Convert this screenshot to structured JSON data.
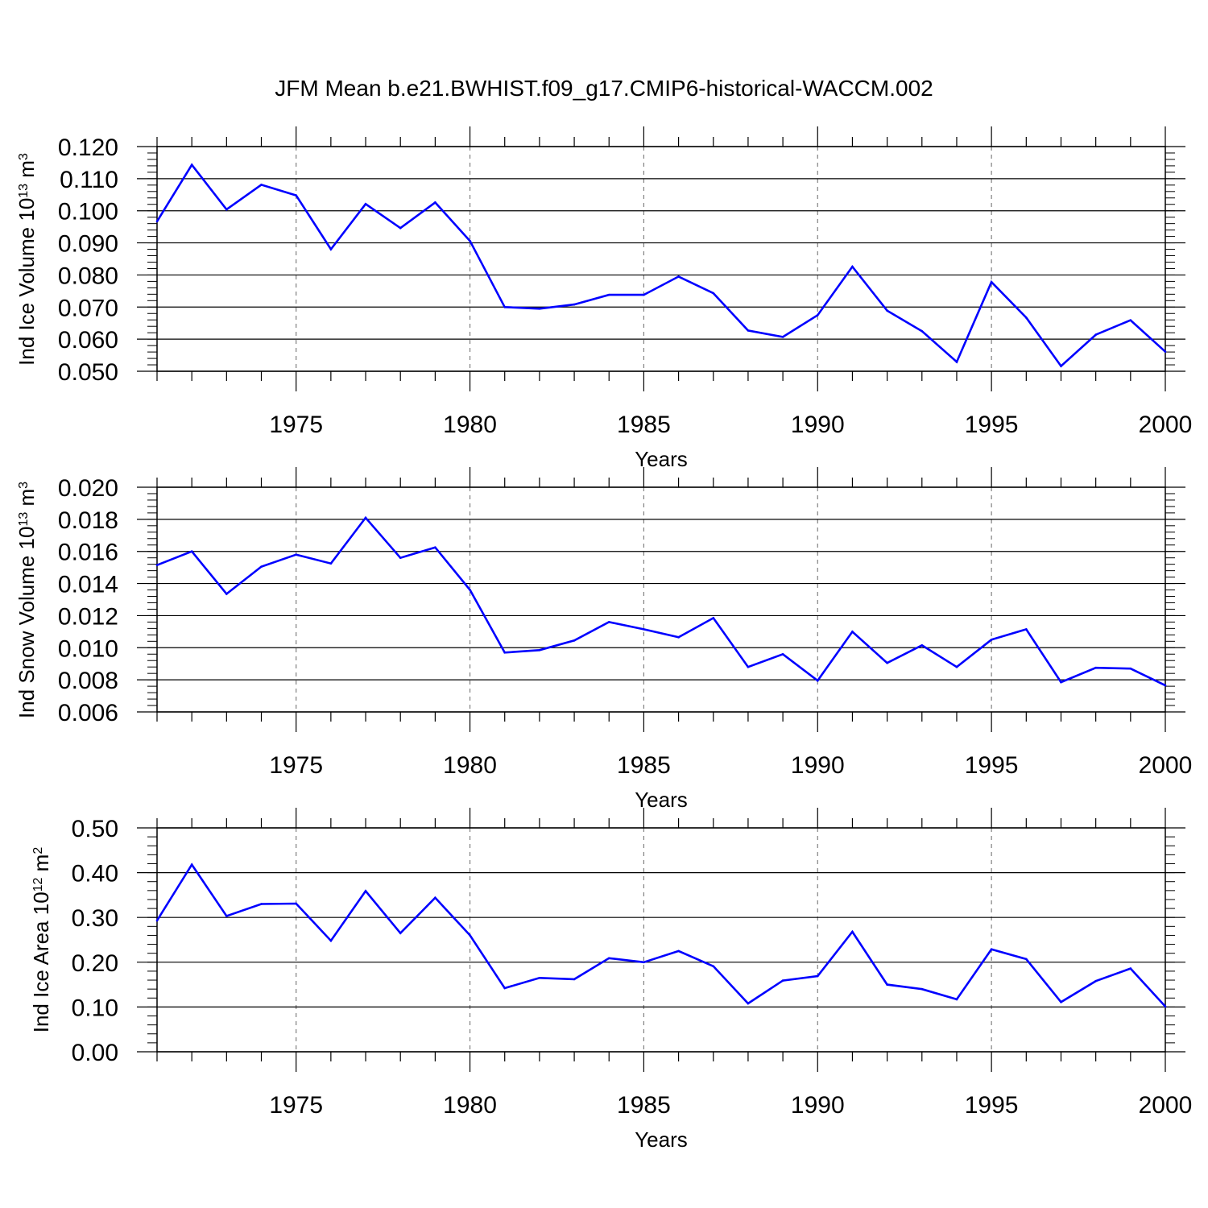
{
  "title": "JFM Mean b.e21.BWHIST.f09_g17.CMIP6-historical-WACCM.002",
  "colors": {
    "line": "#0000ff",
    "axis": "#000000",
    "grid": "#808080"
  },
  "chart_data": [
    {
      "type": "line",
      "ylabel": {
        "text": "Ind Ice Volume 10",
        "exp": "13",
        "unit_text": " m",
        "unit_exp": "3"
      },
      "xlabel": "Years",
      "xlim": [
        1971,
        2000
      ],
      "ylim": [
        0.05,
        0.12
      ],
      "yticks": [
        0.05,
        0.06,
        0.07,
        0.08,
        0.09,
        0.1,
        0.11,
        0.12
      ],
      "ytick_labels": [
        "0.050",
        "0.060",
        "0.070",
        "0.080",
        "0.090",
        "0.100",
        "0.110",
        "0.120"
      ],
      "ytick_minor_step": 0.002,
      "xticks": [
        1975,
        1980,
        1985,
        1990,
        1995,
        2000
      ],
      "xtick_labels": [
        "1975",
        "1980",
        "1985",
        "1990",
        "1995",
        "2000"
      ],
      "x": [
        1971,
        1972,
        1973,
        1974,
        1975,
        1976,
        1977,
        1978,
        1979,
        1980,
        1981,
        1982,
        1983,
        1984,
        1985,
        1986,
        1987,
        1988,
        1989,
        1990,
        1991,
        1992,
        1993,
        1994,
        1995,
        1996,
        1997,
        1998,
        1999,
        2000
      ],
      "values": [
        0.0967,
        0.1143,
        0.1004,
        0.1081,
        0.1048,
        0.088,
        0.1021,
        0.0946,
        0.1026,
        0.0906,
        0.07,
        0.0695,
        0.0708,
        0.0738,
        0.0738,
        0.0795,
        0.0743,
        0.0627,
        0.0607,
        0.0675,
        0.0826,
        0.0689,
        0.0625,
        0.0529,
        0.0778,
        0.0667,
        0.0516,
        0.0614,
        0.0659,
        0.0561
      ]
    },
    {
      "type": "line",
      "ylabel": {
        "text": "Ind Snow Volume 10",
        "exp": "13",
        "unit_text": " m",
        "unit_exp": "3"
      },
      "xlabel": "Years",
      "xlim": [
        1971,
        2000
      ],
      "ylim": [
        0.006,
        0.02
      ],
      "yticks": [
        0.006,
        0.008,
        0.01,
        0.012,
        0.014,
        0.016,
        0.018,
        0.02
      ],
      "ytick_labels": [
        "0.006",
        "0.008",
        "0.010",
        "0.012",
        "0.014",
        "0.016",
        "0.018",
        "0.020"
      ],
      "ytick_minor_step": 0.0004,
      "xticks": [
        1975,
        1980,
        1985,
        1990,
        1995,
        2000
      ],
      "xtick_labels": [
        "1975",
        "1980",
        "1985",
        "1990",
        "1995",
        "2000"
      ],
      "x": [
        1971,
        1972,
        1973,
        1974,
        1975,
        1976,
        1977,
        1978,
        1979,
        1980,
        1981,
        1982,
        1983,
        1984,
        1985,
        1986,
        1987,
        1988,
        1989,
        1990,
        1991,
        1992,
        1993,
        1994,
        1995,
        1996,
        1997,
        1998,
        1999,
        2000
      ],
      "values": [
        0.01515,
        0.016,
        0.01335,
        0.01505,
        0.0158,
        0.01525,
        0.0181,
        0.0156,
        0.01625,
        0.0136,
        0.0097,
        0.00985,
        0.01045,
        0.0116,
        0.01115,
        0.01065,
        0.01185,
        0.0088,
        0.0096,
        0.00795,
        0.011,
        0.00905,
        0.01015,
        0.0088,
        0.0105,
        0.01115,
        0.00785,
        0.00875,
        0.0087,
        0.00765
      ]
    },
    {
      "type": "line",
      "ylabel": {
        "text": "Ind Ice Area 10",
        "exp": "12",
        "unit_text": " m",
        "unit_exp": "2"
      },
      "xlabel": "Years",
      "xlim": [
        1971,
        2000
      ],
      "ylim": [
        0.0,
        0.5
      ],
      "yticks": [
        0.0,
        0.1,
        0.2,
        0.3,
        0.4,
        0.5
      ],
      "ytick_labels": [
        "0.00",
        "0.10",
        "0.20",
        "0.30",
        "0.40",
        "0.50"
      ],
      "ytick_minor_step": 0.02,
      "xticks": [
        1975,
        1980,
        1985,
        1990,
        1995,
        2000
      ],
      "xtick_labels": [
        "1975",
        "1980",
        "1985",
        "1990",
        "1995",
        "2000"
      ],
      "x": [
        1971,
        1972,
        1973,
        1974,
        1975,
        1976,
        1977,
        1978,
        1979,
        1980,
        1981,
        1982,
        1983,
        1984,
        1985,
        1986,
        1987,
        1988,
        1989,
        1990,
        1991,
        1992,
        1993,
        1994,
        1995,
        1996,
        1997,
        1998,
        1999,
        2000
      ],
      "values": [
        0.293,
        0.418,
        0.303,
        0.33,
        0.331,
        0.248,
        0.359,
        0.265,
        0.344,
        0.26,
        0.142,
        0.165,
        0.162,
        0.209,
        0.2,
        0.225,
        0.191,
        0.108,
        0.159,
        0.169,
        0.268,
        0.15,
        0.14,
        0.117,
        0.229,
        0.207,
        0.111,
        0.158,
        0.186,
        0.101
      ]
    }
  ]
}
